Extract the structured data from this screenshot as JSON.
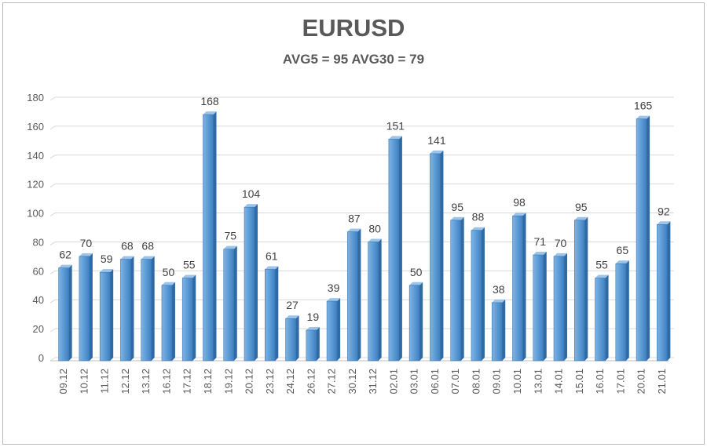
{
  "chart_data": {
    "type": "bar",
    "title": "EURUSD",
    "subtitle": "AVG5 = 95 AVG30 = 79",
    "xlabel": "",
    "ylabel": "",
    "ylim": [
      0,
      180
    ],
    "yticks": [
      0,
      20,
      40,
      60,
      80,
      100,
      120,
      140,
      160,
      180
    ],
    "grid": true,
    "legend": "none",
    "bar_color": "#5b9bd5",
    "categories": [
      "09.12",
      "10.12",
      "11.12",
      "12.12",
      "13.12",
      "16.12",
      "17.12",
      "18.12",
      "19.12",
      "20.12",
      "23.12",
      "24.12",
      "26.12",
      "27.12",
      "30.12",
      "31.12",
      "02.01",
      "03.01",
      "06.01",
      "07.01",
      "08.01",
      "09.01",
      "10.01",
      "13.01",
      "14.01",
      "15.01",
      "16.01",
      "17.01",
      "20.01",
      "21.01"
    ],
    "values": [
      62,
      70,
      59,
      68,
      68,
      50,
      55,
      168,
      75,
      104,
      61,
      27,
      19,
      39,
      87,
      80,
      151,
      50,
      141,
      95,
      88,
      38,
      98,
      71,
      70,
      95,
      55,
      65,
      165,
      92
    ]
  }
}
